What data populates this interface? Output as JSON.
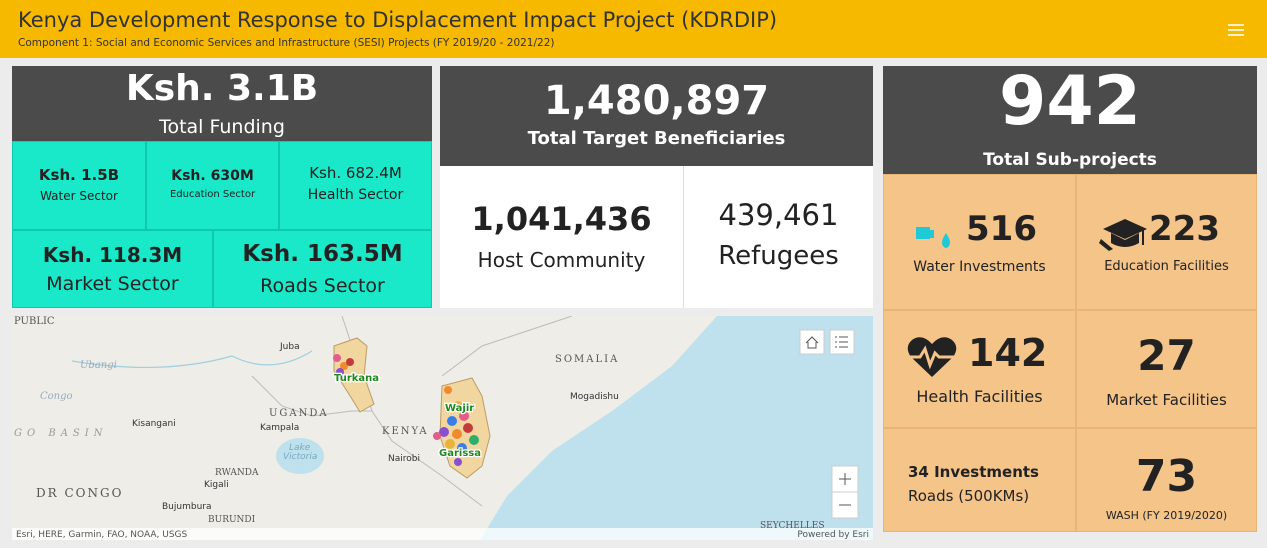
{
  "header": {
    "title": "Kenya Development Response to Displacement Impact Project (KDRDIP)",
    "subtitle": "Component 1: Social and Economic Services and Infrastructure (SESI) Projects (FY 2019/20 - 2021/22)"
  },
  "funding": {
    "total": {
      "value": "Ksh. 3.1B",
      "label": "Total Funding"
    },
    "sectors": [
      {
        "value": "Ksh. 1.5B",
        "label": "Water Sector"
      },
      {
        "value": "Ksh. 630M",
        "label": "Education Sector"
      },
      {
        "value": "Ksh. 682.4M",
        "label": "Health Sector"
      },
      {
        "value": "Ksh. 118.3M",
        "label": "Market Sector"
      },
      {
        "value": "Ksh. 163.5M",
        "label": "Roads Sector"
      }
    ]
  },
  "beneficiaries": {
    "total": {
      "value": "1,480,897",
      "label": "Total Target Beneficiaries"
    },
    "groups": [
      {
        "value": "1,041,436",
        "label": "Host Community"
      },
      {
        "value": "439,461",
        "label": "Refugees"
      }
    ]
  },
  "subprojects": {
    "total": {
      "value": "942",
      "label": "Total Sub-projects"
    },
    "items": [
      {
        "value": "516",
        "label": "Water Investments"
      },
      {
        "value": "223",
        "label": "Education Facilities"
      },
      {
        "value": "142",
        "label": "Health Facilities"
      },
      {
        "value": "27",
        "label": "Market Facilities"
      },
      {
        "value": "34 Investments",
        "label": "Roads (500KMs)"
      },
      {
        "value": "73",
        "label": "WASH (FY 2019/2020)"
      }
    ]
  },
  "map": {
    "labels": [
      "PUBLIC",
      "Juba",
      "Ubangi",
      "Turkana",
      "SOMALIA",
      "Congo",
      "Mogadishu",
      "Wajir",
      "UGANDA",
      "Kisangani",
      "Kampala",
      "KENYA",
      "GO BASIN",
      "Lake",
      "Victoria",
      "Nairobi",
      "Garissa",
      "RWANDA",
      "Kigali",
      "DR CONGO",
      "Bujumbura",
      "BURUNDI",
      "SEYCHELLES"
    ],
    "attribution": "Esri, HERE, Garmin, FAO, NOAA, USGS",
    "powered_by": "Powered by Esri"
  }
}
